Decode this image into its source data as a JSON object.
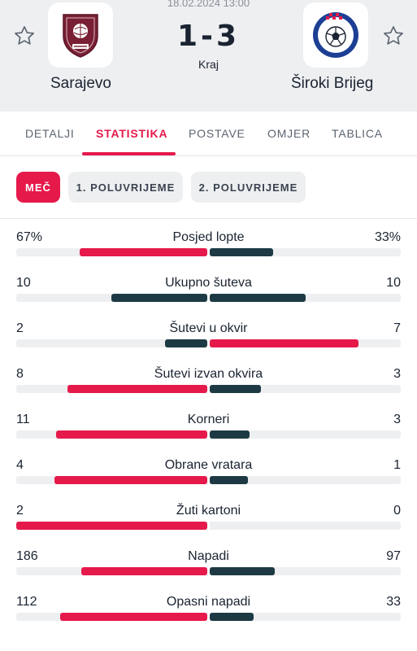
{
  "match": {
    "datetime": "18.02.2024 13:00",
    "score": "1-3",
    "status": "Kraj",
    "home_team": "Sarajevo",
    "away_team": "Široki Brijeg"
  },
  "home_logo": {
    "text": "FK SARAJEVO 1946",
    "colors": [
      "#7a1f33",
      "#ffffff"
    ]
  },
  "away_logo": {
    "text": "NK ŠIROKI BRIJEG",
    "colors": [
      "#1c3f94",
      "#e6194b",
      "#ffffff"
    ]
  },
  "tabs": [
    {
      "label": "DETALJI",
      "active": false
    },
    {
      "label": "STATISTIKA",
      "active": true
    },
    {
      "label": "POSTAVE",
      "active": false
    },
    {
      "label": "OMJER",
      "active": false
    },
    {
      "label": "TABLICA",
      "active": false
    }
  ],
  "periods": [
    {
      "label": "MEČ",
      "active": true
    },
    {
      "label": "1. POLUVRIJEME",
      "active": false
    },
    {
      "label": "2. POLUVRIJEME",
      "active": false
    }
  ],
  "colors": {
    "accent": "#e6194b",
    "dark": "#1d3a44",
    "track": "#eeeff1"
  },
  "stats": [
    {
      "label": "Posjed lopte",
      "home": "67%",
      "away": "33%",
      "home_share": 0.67,
      "away_share": 0.33,
      "home_leads": true
    },
    {
      "label": "Ukupno šuteva",
      "home": "10",
      "away": "10",
      "home_share": 0.5,
      "away_share": 0.5,
      "home_leads": false,
      "tie": true
    },
    {
      "label": "Šutevi u okvir",
      "home": "2",
      "away": "7",
      "home_share": 0.22,
      "away_share": 0.78,
      "home_leads": false
    },
    {
      "label": "Šutevi izvan okvira",
      "home": "8",
      "away": "3",
      "home_share": 0.73,
      "away_share": 0.27,
      "home_leads": true
    },
    {
      "label": "Korneri",
      "home": "11",
      "away": "3",
      "home_share": 0.79,
      "away_share": 0.21,
      "home_leads": true
    },
    {
      "label": "Obrane vratara",
      "home": "4",
      "away": "1",
      "home_share": 0.8,
      "away_share": 0.2,
      "home_leads": true
    },
    {
      "label": "Žuti kartoni",
      "home": "2",
      "away": "0",
      "home_share": 1.0,
      "away_share": 0.0,
      "home_leads": true
    },
    {
      "label": "Napadi",
      "home": "186",
      "away": "97",
      "home_share": 0.66,
      "away_share": 0.34,
      "home_leads": true
    },
    {
      "label": "Opasni napadi",
      "home": "112",
      "away": "33",
      "home_share": 0.77,
      "away_share": 0.23,
      "home_leads": true
    }
  ]
}
